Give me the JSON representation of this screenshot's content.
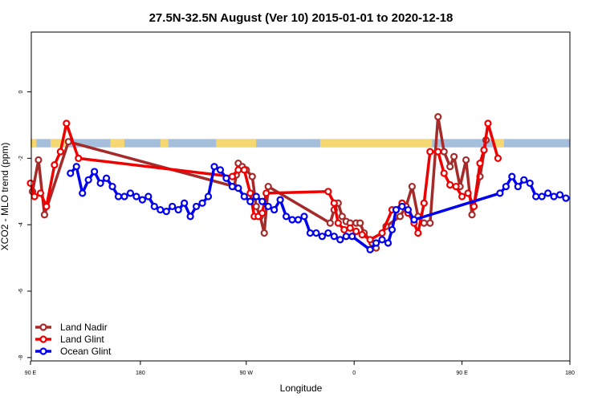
{
  "chart_data": {
    "type": "line",
    "title": "27.5N-32.5N August (Ver 10)   2015-01-01 to 2020-12-18",
    "xlabel": "Longitude",
    "ylabel": "XCO2 - MLO trend (ppm)",
    "xlim": [
      -90,
      180
    ],
    "ylim": [
      -8.1,
      1.8
    ],
    "x_ticks": [
      {
        "value": -90,
        "label": "90 E"
      },
      {
        "value": -35,
        "label": "180"
      },
      {
        "value": 18,
        "label": "90 W"
      },
      {
        "value": 72,
        "label": "0"
      },
      {
        "value": 126,
        "label": "90 E"
      },
      {
        "value": 180,
        "label": "180"
      }
    ],
    "y_ticks": [
      {
        "value": 0,
        "label": "0"
      },
      {
        "value": -2,
        "label": "-2"
      },
      {
        "value": -4,
        "label": "-4"
      },
      {
        "value": -6,
        "label": "-6"
      },
      {
        "value": -8,
        "label": "-8"
      }
    ],
    "grid": false,
    "legend_position": "bottom-left",
    "land_band": {
      "y_top": -1.42,
      "y_bottom": -1.67,
      "ocean_color": "#a4bedc",
      "land_color": "#f6d873",
      "land_x": [
        [
          -90,
          -87
        ],
        [
          -80,
          -72
        ],
        [
          -50,
          -43
        ],
        [
          -25,
          -21
        ],
        [
          3,
          23
        ],
        [
          55,
          111
        ],
        [
          142,
          147
        ]
      ]
    },
    "series": [
      {
        "name": "Land Nadir",
        "color": "#a52a2a",
        "points": [
          [
            -89,
            -3
          ],
          [
            -86,
            -2.05
          ],
          [
            -83,
            -3.7
          ],
          [
            -71,
            -1.5
          ],
          [
            12,
            -2.85
          ],
          [
            13,
            -2.5
          ],
          [
            14,
            -2.15
          ],
          [
            16,
            -2.25
          ],
          [
            18,
            -2.35
          ],
          [
            21,
            -2.55
          ],
          [
            23,
            -3.45
          ],
          [
            25,
            -3.75
          ],
          [
            27,
            -4.25
          ],
          [
            29,
            -2.85
          ],
          [
            60,
            -3.95
          ],
          [
            62,
            -3.55
          ],
          [
            64,
            -3.35
          ],
          [
            66,
            -3.75
          ],
          [
            68,
            -3.9
          ],
          [
            70,
            -3.95
          ],
          [
            73,
            -3.95
          ],
          [
            75,
            -3.95
          ],
          [
            77,
            -4.25
          ],
          [
            81,
            -4.55
          ],
          [
            83,
            -4.7
          ],
          [
            88,
            -4.05
          ],
          [
            95,
            -3.75
          ],
          [
            98,
            -3.45
          ],
          [
            101,
            -2.85
          ],
          [
            104,
            -3.75
          ],
          [
            107,
            -3.95
          ],
          [
            110,
            -3.95
          ],
          [
            114,
            -0.75
          ],
          [
            117,
            -1.8
          ],
          [
            120,
            -2.25
          ],
          [
            122,
            -1.95
          ],
          [
            125,
            -2.85
          ],
          [
            128,
            -2.05
          ],
          [
            131,
            -3.7
          ],
          [
            135,
            -2.55
          ],
          [
            138,
            -1.45
          ]
        ]
      },
      {
        "name": "Land Glint",
        "color": "#ee0000",
        "points": [
          [
            -90,
            -2.75
          ],
          [
            -88,
            -3.15
          ],
          [
            -85,
            -3.05
          ],
          [
            -82,
            -3.45
          ],
          [
            -78,
            -2.2
          ],
          [
            -75,
            -1.8
          ],
          [
            -72,
            -0.95
          ],
          [
            -66,
            -2.0
          ],
          [
            11,
            -2.55
          ],
          [
            14,
            -2.35
          ],
          [
            17,
            -2.35
          ],
          [
            20,
            -3.05
          ],
          [
            22,
            -3.75
          ],
          [
            24,
            -3.75
          ],
          [
            26,
            -3.65
          ],
          [
            28,
            -3.05
          ],
          [
            59,
            -3.0
          ],
          [
            62,
            -3.35
          ],
          [
            64,
            -3.95
          ],
          [
            67,
            -4.15
          ],
          [
            70,
            -4.1
          ],
          [
            73,
            -4.2
          ],
          [
            76,
            -4.3
          ],
          [
            80,
            -4.45
          ],
          [
            86,
            -4.25
          ],
          [
            91,
            -3.55
          ],
          [
            93,
            -3.55
          ],
          [
            96,
            -3.35
          ],
          [
            99,
            -3.65
          ],
          [
            102,
            -3.95
          ],
          [
            104,
            -4.25
          ],
          [
            107,
            -3.35
          ],
          [
            110,
            -1.8
          ],
          [
            114,
            -1.8
          ],
          [
            117,
            -2.45
          ],
          [
            120,
            -2.8
          ],
          [
            123,
            -2.85
          ],
          [
            126,
            -3.15
          ],
          [
            129,
            -3.05
          ],
          [
            132,
            -3.45
          ],
          [
            135,
            -2.15
          ],
          [
            137,
            -1.75
          ],
          [
            139,
            -0.95
          ],
          [
            144,
            -2.0
          ]
        ]
      },
      {
        "name": "Ocean Glint",
        "color": "#0000ee",
        "points": [
          [
            -70,
            -2.45
          ],
          [
            -67,
            -2.25
          ],
          [
            -64,
            -3.05
          ],
          [
            -61,
            -2.65
          ],
          [
            -58,
            -2.4
          ],
          [
            -55,
            -2.75
          ],
          [
            -52,
            -2.6
          ],
          [
            -49,
            -2.85
          ],
          [
            -46,
            -3.15
          ],
          [
            -43,
            -3.15
          ],
          [
            -40,
            -3.05
          ],
          [
            -37,
            -3.15
          ],
          [
            -34,
            -3.25
          ],
          [
            -31,
            -3.15
          ],
          [
            -28,
            -3.45
          ],
          [
            -25,
            -3.55
          ],
          [
            -22,
            -3.6
          ],
          [
            -19,
            -3.45
          ],
          [
            -16,
            -3.55
          ],
          [
            -13,
            -3.35
          ],
          [
            -10,
            -3.75
          ],
          [
            -7,
            -3.45
          ],
          [
            -4,
            -3.35
          ],
          [
            -1,
            -3.15
          ],
          [
            2,
            -2.25
          ],
          [
            5,
            -2.35
          ],
          [
            8,
            -2.6
          ],
          [
            11,
            -2.85
          ],
          [
            14,
            -2.9
          ],
          [
            17,
            -3.15
          ],
          [
            20,
            -3.3
          ],
          [
            23,
            -3.15
          ],
          [
            26,
            -3.3
          ],
          [
            29,
            -3.45
          ],
          [
            32,
            -3.55
          ],
          [
            35,
            -3.25
          ],
          [
            38,
            -3.75
          ],
          [
            41,
            -3.85
          ],
          [
            44,
            -3.85
          ],
          [
            47,
            -3.75
          ],
          [
            50,
            -4.25
          ],
          [
            53,
            -4.25
          ],
          [
            56,
            -4.35
          ],
          [
            59,
            -4.25
          ],
          [
            62,
            -4.35
          ],
          [
            65,
            -4.45
          ],
          [
            68,
            -4.35
          ],
          [
            71,
            -4.35
          ],
          [
            80,
            -4.75
          ],
          [
            83,
            -4.55
          ],
          [
            86,
            -4.45
          ],
          [
            89,
            -4.55
          ],
          [
            91,
            -4.15
          ],
          [
            93,
            -3.55
          ],
          [
            96,
            -3.45
          ],
          [
            99,
            -3.55
          ],
          [
            102,
            -3.85
          ],
          [
            145,
            -3.05
          ],
          [
            148,
            -2.85
          ],
          [
            151,
            -2.55
          ],
          [
            154,
            -2.85
          ],
          [
            157,
            -2.65
          ],
          [
            160,
            -2.75
          ],
          [
            163,
            -3.15
          ],
          [
            166,
            -3.15
          ],
          [
            169,
            -3.05
          ],
          [
            172,
            -3.15
          ],
          [
            175,
            -3.1
          ],
          [
            178,
            -3.2
          ]
        ]
      }
    ]
  }
}
